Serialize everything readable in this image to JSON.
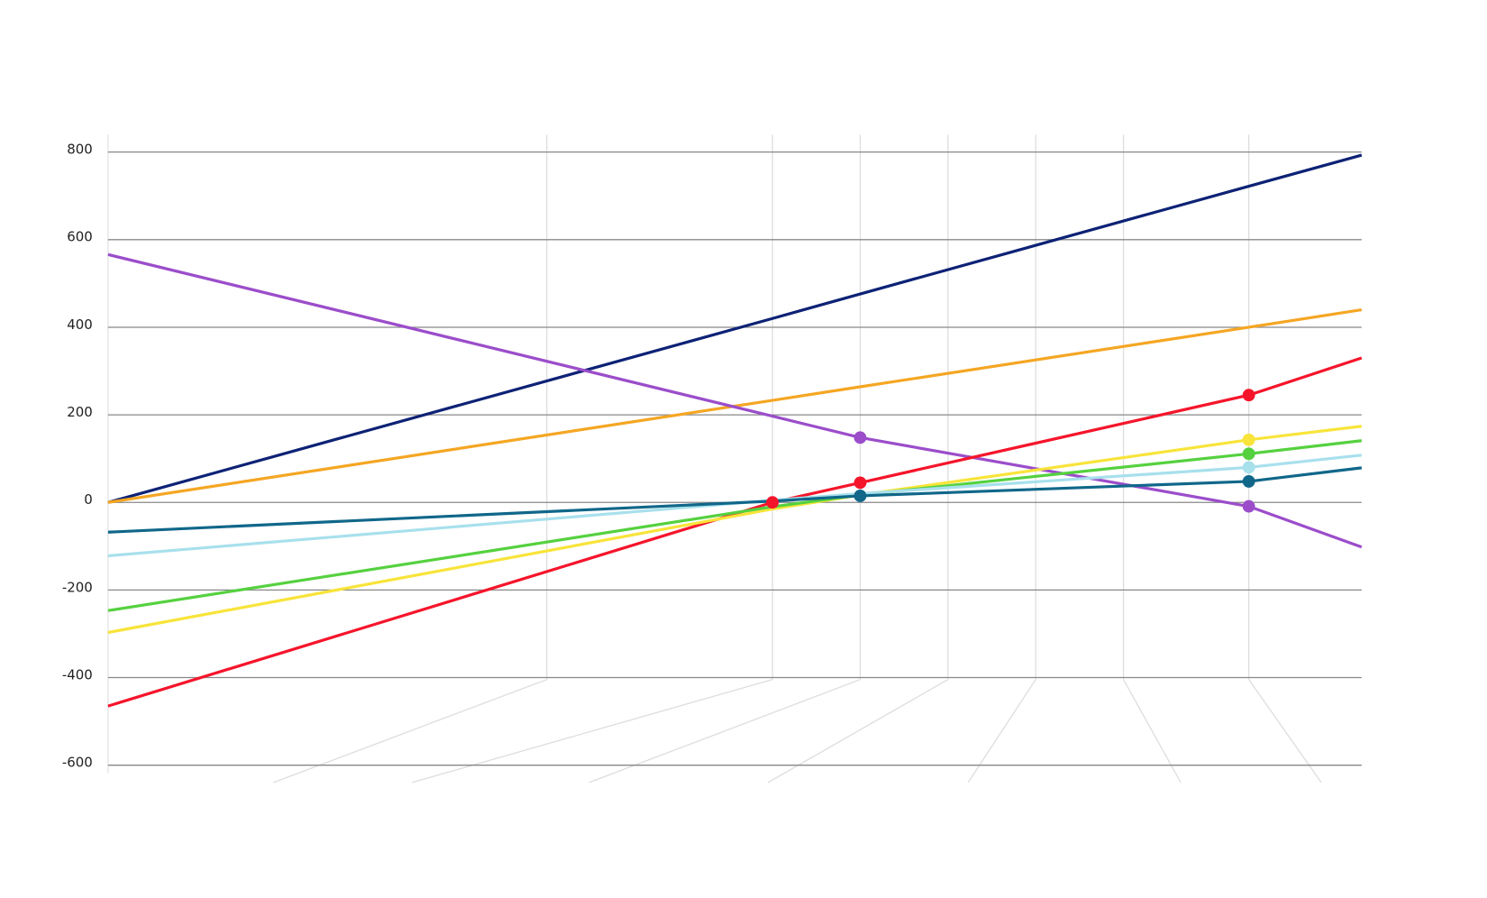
{
  "chart_data": {
    "type": "line",
    "x": [
      0,
      53,
      60,
      91,
      100
    ],
    "xlim": [
      0,
      100
    ],
    "x_gridlines": [
      35,
      53,
      60,
      67,
      74,
      81,
      91
    ],
    "ylim": [
      -600,
      800
    ],
    "yticks": [
      -600,
      -400,
      -200,
      0,
      200,
      400,
      600,
      800
    ],
    "grid": true,
    "series": [
      {
        "color": "#0d2275",
        "values": [
          0,
          420,
          476,
          722,
          793
        ],
        "markers": []
      },
      {
        "color": "#f5a623",
        "values": [
          0,
          233,
          264,
          400,
          440
        ],
        "markers": []
      },
      {
        "color": "#9b4dca",
        "values": [
          566,
          197,
          148,
          -9,
          -102
        ],
        "markers": [
          2,
          3
        ]
      },
      {
        "color": "#f5152b",
        "values": [
          -465,
          0,
          45,
          245,
          330
        ],
        "markers": [
          1,
          2,
          3
        ]
      },
      {
        "color": "#f8e43a",
        "values": [
          -297,
          -15,
          17,
          143,
          174
        ],
        "markers": [
          3
        ]
      },
      {
        "color": "#55d13f",
        "values": [
          -247,
          -10,
          17,
          111,
          141
        ],
        "markers": [
          3
        ]
      },
      {
        "color": "#a8e0ec",
        "values": [
          -122,
          5,
          20,
          80,
          108
        ],
        "markers": [
          3
        ]
      },
      {
        "color": "#10678a",
        "values": [
          -68,
          3,
          15,
          48,
          79
        ],
        "markers": [
          2,
          3
        ]
      }
    ]
  }
}
